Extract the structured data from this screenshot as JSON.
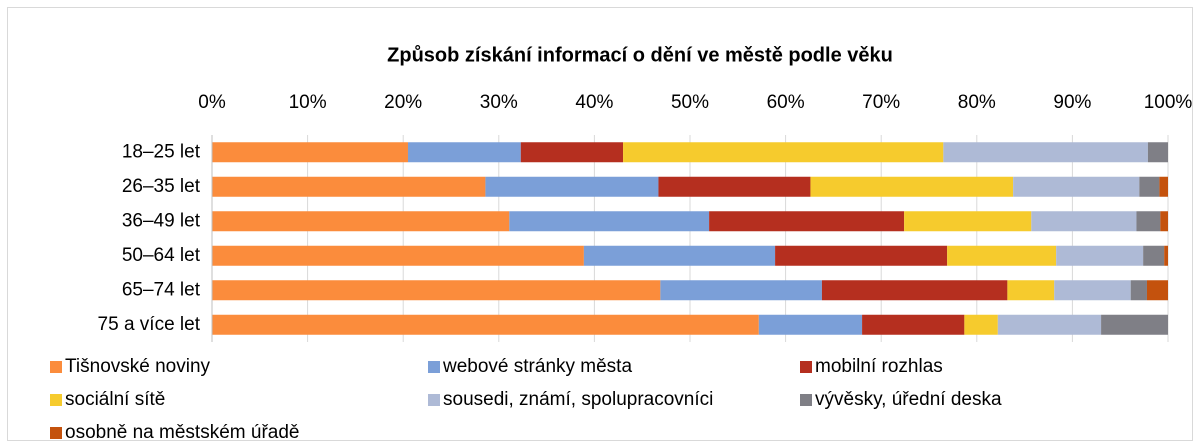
{
  "chart_data": {
    "type": "stacked_barh",
    "title": "Způsob získání informací o dění ve městě podle věku",
    "categories": [
      "18–25 let",
      "26–35 let",
      "36–49 let",
      "50–64 let",
      "65–74 let",
      "75 a více let"
    ],
    "series": [
      {
        "name": "Tišnovské noviny",
        "color": "#fb8c3c",
        "values": [
          20.5,
          28.6,
          31.1,
          38.9,
          46.9,
          57.2
        ]
      },
      {
        "name": "webové stránky města",
        "color": "#7b9fd8",
        "values": [
          11.8,
          18.1,
          20.9,
          20.0,
          16.9,
          10.8
        ]
      },
      {
        "name": "mobilní rozhlas",
        "color": "#b52f1f",
        "values": [
          10.7,
          15.9,
          20.4,
          18.0,
          19.4,
          10.7
        ]
      },
      {
        "name": "sociální sítě",
        "color": "#f6cb2d",
        "values": [
          33.5,
          21.2,
          13.3,
          11.4,
          4.9,
          3.5
        ]
      },
      {
        "name": "sousedi, známí, spolupracovníci",
        "color": "#aebad6",
        "values": [
          21.4,
          13.2,
          11.0,
          9.1,
          8.0,
          10.8
        ]
      },
      {
        "name": "vývěsky, úřední deska",
        "color": "#7f7f86",
        "values": [
          2.1,
          2.1,
          2.5,
          2.2,
          1.7,
          7.0
        ]
      },
      {
        "name": "osobně na městském úřadě",
        "color": "#c4520d",
        "values": [
          0,
          0.9,
          0.8,
          0.4,
          2.2,
          0
        ]
      }
    ],
    "xlim": [
      0,
      100
    ],
    "xticks": [
      {
        "value": 0,
        "label": "0%"
      },
      {
        "value": 10,
        "label": "10%"
      },
      {
        "value": 20,
        "label": "20%"
      },
      {
        "value": 30,
        "label": "30%"
      },
      {
        "value": 40,
        "label": "40%"
      },
      {
        "value": 50,
        "label": "50%"
      },
      {
        "value": 60,
        "label": "60%"
      },
      {
        "value": 70,
        "label": "70%"
      },
      {
        "value": 80,
        "label": "80%"
      },
      {
        "value": 90,
        "label": "90%"
      },
      {
        "value": 100,
        "label": "100%"
      }
    ],
    "grid": true,
    "legend": "bottom"
  }
}
